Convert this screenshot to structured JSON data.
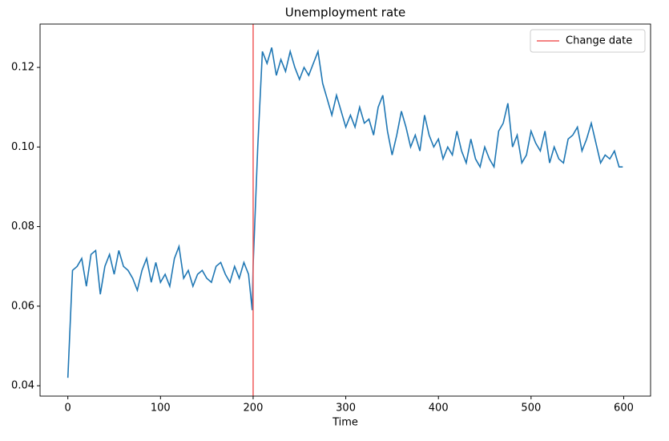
{
  "chart_data": {
    "type": "line",
    "title": "Unemployment rate",
    "xlabel": "Time",
    "x": [
      0,
      5,
      10,
      15,
      20,
      25,
      30,
      35,
      40,
      45,
      50,
      55,
      60,
      65,
      70,
      75,
      80,
      85,
      90,
      95,
      100,
      105,
      110,
      115,
      120,
      125,
      130,
      135,
      140,
      145,
      150,
      155,
      160,
      165,
      170,
      175,
      180,
      185,
      190,
      195,
      199,
      200,
      205,
      210,
      215,
      220,
      225,
      230,
      235,
      240,
      245,
      250,
      255,
      260,
      265,
      270,
      275,
      280,
      285,
      290,
      295,
      300,
      305,
      310,
      315,
      320,
      325,
      330,
      335,
      340,
      345,
      350,
      355,
      360,
      365,
      370,
      375,
      380,
      385,
      390,
      395,
      400,
      405,
      410,
      415,
      420,
      425,
      430,
      435,
      440,
      445,
      450,
      455,
      460,
      465,
      470,
      475,
      480,
      485,
      490,
      495,
      500,
      505,
      510,
      515,
      520,
      525,
      530,
      535,
      540,
      545,
      550,
      555,
      560,
      565,
      570,
      575,
      580,
      585,
      590,
      595,
      599
    ],
    "series": [
      {
        "name": "Unemployment rate",
        "color": "#1f77b4",
        "values": [
          0.042,
          0.069,
          0.07,
          0.072,
          0.065,
          0.073,
          0.074,
          0.063,
          0.07,
          0.073,
          0.068,
          0.074,
          0.07,
          0.069,
          0.067,
          0.064,
          0.069,
          0.072,
          0.066,
          0.071,
          0.066,
          0.068,
          0.065,
          0.072,
          0.075,
          0.067,
          0.069,
          0.065,
          0.068,
          0.069,
          0.067,
          0.066,
          0.07,
          0.071,
          0.068,
          0.066,
          0.07,
          0.067,
          0.071,
          0.068,
          0.059,
          0.07,
          0.1,
          0.124,
          0.121,
          0.125,
          0.118,
          0.122,
          0.119,
          0.124,
          0.12,
          0.117,
          0.12,
          0.118,
          0.121,
          0.124,
          0.116,
          0.112,
          0.108,
          0.113,
          0.109,
          0.105,
          0.108,
          0.105,
          0.11,
          0.106,
          0.107,
          0.103,
          0.11,
          0.113,
          0.104,
          0.098,
          0.103,
          0.109,
          0.105,
          0.1,
          0.103,
          0.099,
          0.108,
          0.103,
          0.1,
          0.102,
          0.097,
          0.1,
          0.098,
          0.104,
          0.099,
          0.096,
          0.102,
          0.097,
          0.095,
          0.1,
          0.097,
          0.095,
          0.104,
          0.106,
          0.111,
          0.1,
          0.103,
          0.096,
          0.098,
          0.104,
          0.101,
          0.099,
          0.104,
          0.096,
          0.1,
          0.097,
          0.096,
          0.102,
          0.103,
          0.105,
          0.099,
          0.102,
          0.106,
          0.101,
          0.096,
          0.098,
          0.097,
          0.099,
          0.095,
          0.095
        ]
      }
    ],
    "vlines": [
      {
        "name": "Change date",
        "x": 200,
        "color": "#f05a5a"
      }
    ],
    "xlim": [
      -30,
      629
    ],
    "xticks": [
      0,
      100,
      200,
      300,
      400,
      500,
      600
    ],
    "ylim": [
      0.0374,
      0.1309
    ],
    "yticks": [
      0.04,
      0.06,
      0.08,
      {
        "value": 0.1,
        "label": "0.10"
      },
      0.12
    ],
    "legend": "upper right"
  }
}
